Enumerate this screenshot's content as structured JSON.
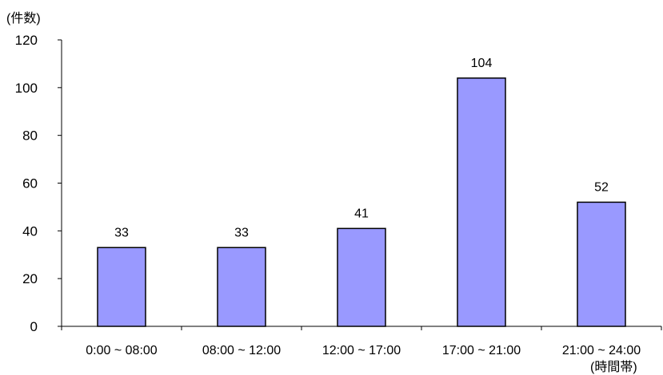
{
  "chart_data": {
    "type": "bar",
    "ylabel": "(件数)",
    "xlabel": "(時間帯)",
    "categories": [
      "0:00 ~ 08:00",
      "08:00 ~ 12:00",
      "12:00 ~ 17:00",
      "17:00 ~ 21:00",
      "21:00 ~ 24:00"
    ],
    "values": [
      33,
      33,
      41,
      104,
      52
    ],
    "data_labels": [
      "33",
      "33",
      "41",
      "104",
      "52"
    ],
    "ylim": [
      0,
      120
    ],
    "yticks": [
      0,
      20,
      40,
      60,
      80,
      100,
      120
    ],
    "grid": false,
    "legend": "none",
    "colors": {
      "bar_fill": "#9999ff",
      "bar_stroke": "#000000",
      "axis": "#000000"
    }
  }
}
